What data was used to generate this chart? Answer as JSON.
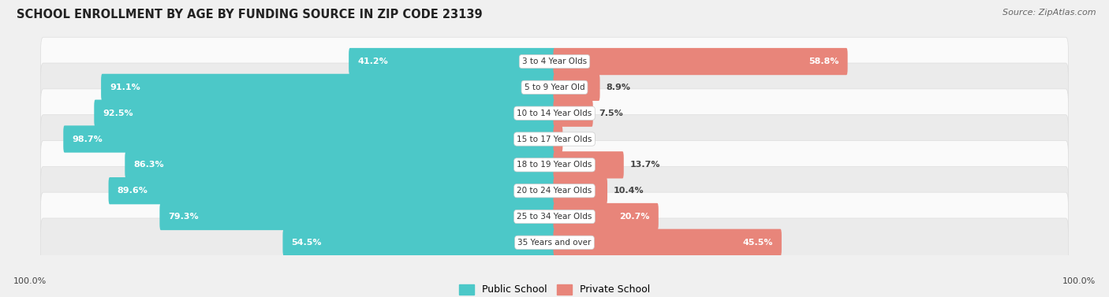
{
  "title": "SCHOOL ENROLLMENT BY AGE BY FUNDING SOURCE IN ZIP CODE 23139",
  "source": "Source: ZipAtlas.com",
  "categories": [
    "3 to 4 Year Olds",
    "5 to 9 Year Old",
    "10 to 14 Year Olds",
    "15 to 17 Year Olds",
    "18 to 19 Year Olds",
    "20 to 24 Year Olds",
    "25 to 34 Year Olds",
    "35 Years and over"
  ],
  "public_values": [
    41.2,
    91.1,
    92.5,
    98.7,
    86.3,
    89.6,
    79.3,
    54.5
  ],
  "private_values": [
    58.8,
    8.9,
    7.5,
    1.4,
    13.7,
    10.4,
    20.7,
    45.5
  ],
  "public_color": "#4CC8C8",
  "private_color": "#E8857A",
  "public_label": "Public School",
  "private_label": "Private School",
  "bar_height": 0.55,
  "background_color": "#F0F0F0",
  "row_bg_light": "#FAFAFA",
  "row_bg_dark": "#EBEBEB",
  "axis_label_left": "100.0%",
  "axis_label_right": "100.0%",
  "title_fontsize": 10.5,
  "source_fontsize": 8,
  "label_fontsize": 8,
  "cat_fontsize": 7.5
}
